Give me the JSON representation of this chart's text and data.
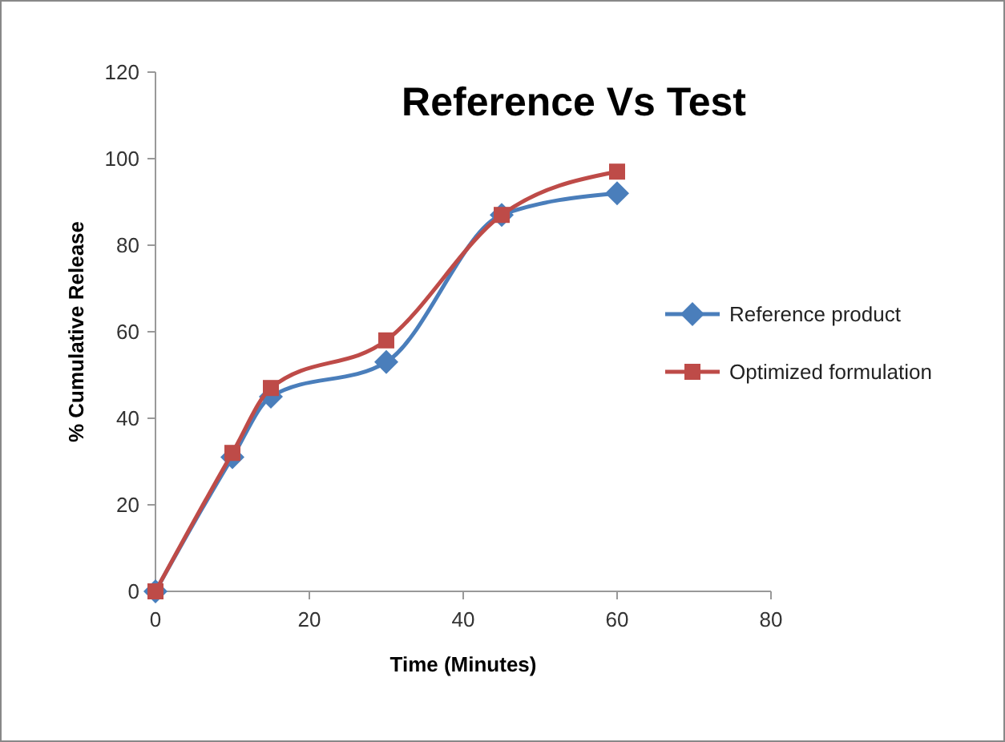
{
  "chart_data": {
    "type": "line",
    "title": "Reference Vs Test",
    "xlabel": "Time (Minutes)",
    "ylabel": "% Cumulative Release",
    "x": [
      0,
      10,
      15,
      30,
      45,
      60
    ],
    "series": [
      {
        "name": "Reference product",
        "color": "#4a7ebb",
        "marker": "diamond",
        "values": [
          0,
          31,
          45,
          53,
          87,
          92
        ]
      },
      {
        "name": "Optimized formulation",
        "color": "#be4b48",
        "marker": "square",
        "values": [
          0,
          32,
          47,
          58,
          87,
          97
        ]
      }
    ],
    "xlim": [
      0,
      80
    ],
    "xticks": [
      0,
      20,
      40,
      60,
      80
    ],
    "ylim": [
      0,
      120
    ],
    "yticks": [
      0,
      20,
      40,
      60,
      80,
      100,
      120
    ],
    "grid": false,
    "legend": "right"
  }
}
